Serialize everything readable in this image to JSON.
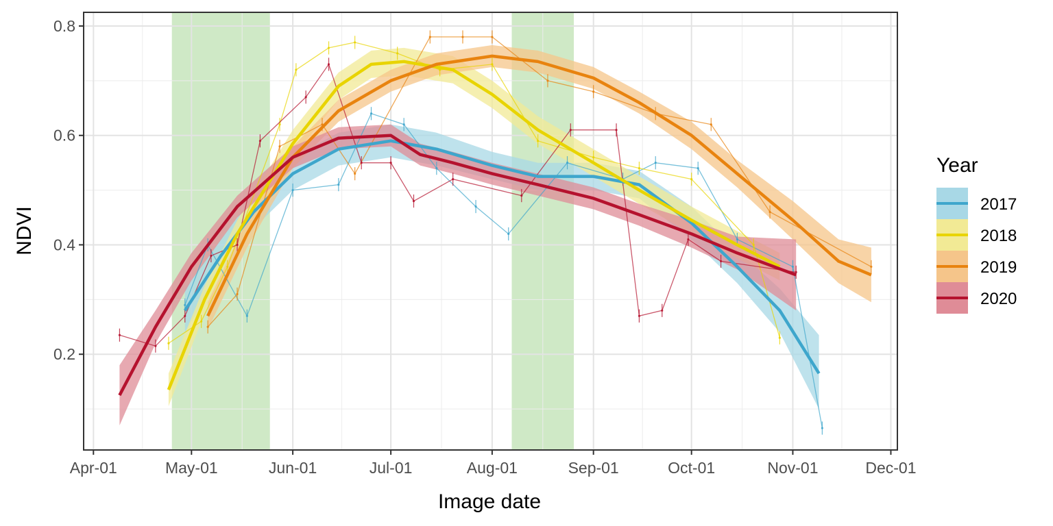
{
  "chart_data": {
    "type": "line",
    "xlabel": "Image date",
    "ylabel": "NDVI",
    "x_tick_labels": [
      "Apr-01",
      "May-01",
      "Jun-01",
      "Jul-01",
      "Aug-01",
      "Sep-01",
      "Oct-01",
      "Nov-01",
      "Dec-01"
    ],
    "x_tick_dates": [
      "2000-04-01",
      "2000-05-01",
      "2000-06-01",
      "2000-07-01",
      "2000-08-01",
      "2000-09-01",
      "2000-10-01",
      "2000-11-01",
      "2000-12-01"
    ],
    "xlim": [
      "2000-03-29",
      "2000-12-03"
    ],
    "y_ticks": [
      0.2,
      0.4,
      0.6,
      0.8
    ],
    "y_tick_labels": [
      "0.2",
      "0.4",
      "0.6",
      "0.8"
    ],
    "ylim": [
      0.025,
      0.825
    ],
    "grid": true,
    "shaded_periods": [
      {
        "start": "2000-04-25",
        "end": "2000-05-25",
        "color": "#cfe9c6"
      },
      {
        "start": "2000-08-07",
        "end": "2000-08-26",
        "color": "#cfe9c6"
      }
    ],
    "legend": {
      "title": "Year",
      "position": "right",
      "entries": [
        "2017",
        "2018",
        "2019",
        "2020"
      ]
    },
    "series": [
      {
        "name": "2017",
        "color": "#3ea6cc",
        "band_color": "#a8d8e6",
        "smooth": [
          {
            "x": "2000-04-29",
            "y": 0.28,
            "lo": 0.24,
            "hi": 0.32
          },
          {
            "x": "2000-05-10",
            "y": 0.38,
            "lo": 0.35,
            "hi": 0.41
          },
          {
            "x": "2000-05-20",
            "y": 0.46,
            "lo": 0.43,
            "hi": 0.49
          },
          {
            "x": "2000-06-01",
            "y": 0.53,
            "lo": 0.5,
            "hi": 0.56
          },
          {
            "x": "2000-06-15",
            "y": 0.575,
            "lo": 0.545,
            "hi": 0.605
          },
          {
            "x": "2000-07-01",
            "y": 0.59,
            "lo": 0.56,
            "hi": 0.62
          },
          {
            "x": "2000-07-15",
            "y": 0.575,
            "lo": 0.545,
            "hi": 0.605
          },
          {
            "x": "2000-08-01",
            "y": 0.545,
            "lo": 0.52,
            "hi": 0.57
          },
          {
            "x": "2000-08-15",
            "y": 0.525,
            "lo": 0.5,
            "hi": 0.55
          },
          {
            "x": "2000-09-01",
            "y": 0.525,
            "lo": 0.5,
            "hi": 0.55
          },
          {
            "x": "2000-09-15",
            "y": 0.51,
            "lo": 0.485,
            "hi": 0.535
          },
          {
            "x": "2000-10-01",
            "y": 0.44,
            "lo": 0.41,
            "hi": 0.47
          },
          {
            "x": "2000-10-15",
            "y": 0.36,
            "lo": 0.33,
            "hi": 0.39
          },
          {
            "x": "2000-10-28",
            "y": 0.28,
            "lo": 0.24,
            "hi": 0.32
          },
          {
            "x": "2000-11-09",
            "y": 0.165,
            "lo": 0.1,
            "hi": 0.235
          }
        ],
        "field_points": [
          {
            "x": "2000-04-29",
            "y": 0.29
          },
          {
            "x": "2000-05-06",
            "y": 0.4
          },
          {
            "x": "2000-05-18",
            "y": 0.27
          },
          {
            "x": "2000-06-01",
            "y": 0.5
          },
          {
            "x": "2000-06-15",
            "y": 0.51
          },
          {
            "x": "2000-06-25",
            "y": 0.64
          },
          {
            "x": "2000-07-05",
            "y": 0.62
          },
          {
            "x": "2000-07-15",
            "y": 0.54
          },
          {
            "x": "2000-07-27",
            "y": 0.47
          },
          {
            "x": "2000-08-06",
            "y": 0.42
          },
          {
            "x": "2000-08-24",
            "y": 0.55
          },
          {
            "x": "2000-09-10",
            "y": 0.52
          },
          {
            "x": "2000-09-20",
            "y": 0.55
          },
          {
            "x": "2000-10-03",
            "y": 0.54
          },
          {
            "x": "2000-10-15",
            "y": 0.41
          },
          {
            "x": "2000-11-01",
            "y": 0.36
          },
          {
            "x": "2000-11-10",
            "y": 0.065
          }
        ]
      },
      {
        "name": "2018",
        "color": "#e8d400",
        "band_color": "#f2ea95",
        "smooth": [
          {
            "x": "2000-04-24",
            "y": 0.135,
            "lo": 0.105,
            "hi": 0.165
          },
          {
            "x": "2000-05-05",
            "y": 0.3,
            "lo": 0.275,
            "hi": 0.325
          },
          {
            "x": "2000-05-15",
            "y": 0.42,
            "lo": 0.395,
            "hi": 0.445
          },
          {
            "x": "2000-06-01",
            "y": 0.585,
            "lo": 0.56,
            "hi": 0.61
          },
          {
            "x": "2000-06-15",
            "y": 0.69,
            "lo": 0.665,
            "hi": 0.715
          },
          {
            "x": "2000-06-25",
            "y": 0.73,
            "lo": 0.705,
            "hi": 0.755
          },
          {
            "x": "2000-07-05",
            "y": 0.735,
            "lo": 0.71,
            "hi": 0.76
          },
          {
            "x": "2000-07-20",
            "y": 0.72,
            "lo": 0.695,
            "hi": 0.745
          },
          {
            "x": "2000-08-01",
            "y": 0.675,
            "lo": 0.65,
            "hi": 0.7
          },
          {
            "x": "2000-08-15",
            "y": 0.61,
            "lo": 0.585,
            "hi": 0.635
          },
          {
            "x": "2000-09-01",
            "y": 0.55,
            "lo": 0.525,
            "hi": 0.575
          },
          {
            "x": "2000-09-15",
            "y": 0.5,
            "lo": 0.475,
            "hi": 0.525
          },
          {
            "x": "2000-10-01",
            "y": 0.445,
            "lo": 0.42,
            "hi": 0.47
          },
          {
            "x": "2000-10-15",
            "y": 0.4,
            "lo": 0.375,
            "hi": 0.425
          },
          {
            "x": "2000-10-28",
            "y": 0.36,
            "lo": 0.335,
            "hi": 0.385
          }
        ],
        "field_points": [
          {
            "x": "2000-04-24",
            "y": 0.22
          },
          {
            "x": "2000-05-04",
            "y": 0.26
          },
          {
            "x": "2000-05-12",
            "y": 0.36
          },
          {
            "x": "2000-05-28",
            "y": 0.62
          },
          {
            "x": "2000-06-02",
            "y": 0.72
          },
          {
            "x": "2000-06-12",
            "y": 0.76
          },
          {
            "x": "2000-06-20",
            "y": 0.77
          },
          {
            "x": "2000-07-03",
            "y": 0.75
          },
          {
            "x": "2000-07-16",
            "y": 0.72
          },
          {
            "x": "2000-08-01",
            "y": 0.73
          },
          {
            "x": "2000-08-15",
            "y": 0.59
          },
          {
            "x": "2000-09-01",
            "y": 0.56
          },
          {
            "x": "2000-09-15",
            "y": 0.54
          },
          {
            "x": "2000-10-01",
            "y": 0.52
          },
          {
            "x": "2000-10-20",
            "y": 0.4
          },
          {
            "x": "2000-10-28",
            "y": 0.23
          }
        ]
      },
      {
        "name": "2019",
        "color": "#e8830f",
        "band_color": "#f5c58a",
        "smooth": [
          {
            "x": "2000-05-06",
            "y": 0.27,
            "lo": 0.245,
            "hi": 0.295
          },
          {
            "x": "2000-05-18",
            "y": 0.42,
            "lo": 0.395,
            "hi": 0.445
          },
          {
            "x": "2000-06-01",
            "y": 0.56,
            "lo": 0.54,
            "hi": 0.58
          },
          {
            "x": "2000-06-15",
            "y": 0.645,
            "lo": 0.625,
            "hi": 0.665
          },
          {
            "x": "2000-07-01",
            "y": 0.7,
            "lo": 0.68,
            "hi": 0.72
          },
          {
            "x": "2000-07-15",
            "y": 0.73,
            "lo": 0.71,
            "hi": 0.75
          },
          {
            "x": "2000-08-01",
            "y": 0.745,
            "lo": 0.725,
            "hi": 0.765
          },
          {
            "x": "2000-08-15",
            "y": 0.735,
            "lo": 0.715,
            "hi": 0.755
          },
          {
            "x": "2000-09-01",
            "y": 0.705,
            "lo": 0.685,
            "hi": 0.725
          },
          {
            "x": "2000-09-15",
            "y": 0.66,
            "lo": 0.64,
            "hi": 0.68
          },
          {
            "x": "2000-10-01",
            "y": 0.6,
            "lo": 0.575,
            "hi": 0.625
          },
          {
            "x": "2000-10-15",
            "y": 0.53,
            "lo": 0.505,
            "hi": 0.555
          },
          {
            "x": "2000-11-01",
            "y": 0.445,
            "lo": 0.41,
            "hi": 0.48
          },
          {
            "x": "2000-11-15",
            "y": 0.37,
            "lo": 0.33,
            "hi": 0.41
          },
          {
            "x": "2000-11-25",
            "y": 0.345,
            "lo": 0.295,
            "hi": 0.395
          }
        ],
        "field_points": [
          {
            "x": "2000-05-06",
            "y": 0.25
          },
          {
            "x": "2000-05-15",
            "y": 0.31
          },
          {
            "x": "2000-05-28",
            "y": 0.58
          },
          {
            "x": "2000-06-10",
            "y": 0.62
          },
          {
            "x": "2000-06-20",
            "y": 0.53
          },
          {
            "x": "2000-07-13",
            "y": 0.78
          },
          {
            "x": "2000-07-23",
            "y": 0.78
          },
          {
            "x": "2000-08-01",
            "y": 0.78
          },
          {
            "x": "2000-08-18",
            "y": 0.7
          },
          {
            "x": "2000-09-01",
            "y": 0.68
          },
          {
            "x": "2000-09-20",
            "y": 0.64
          },
          {
            "x": "2000-10-07",
            "y": 0.62
          },
          {
            "x": "2000-10-25",
            "y": 0.46
          },
          {
            "x": "2000-11-25",
            "y": 0.36
          }
        ]
      },
      {
        "name": "2020",
        "color": "#b5122e",
        "band_color": "#df8c97",
        "smooth": [
          {
            "x": "2000-04-09",
            "y": 0.125,
            "lo": 0.07,
            "hi": 0.18
          },
          {
            "x": "2000-04-20",
            "y": 0.25,
            "lo": 0.22,
            "hi": 0.28
          },
          {
            "x": "2000-05-01",
            "y": 0.36,
            "lo": 0.335,
            "hi": 0.385
          },
          {
            "x": "2000-05-15",
            "y": 0.47,
            "lo": 0.45,
            "hi": 0.49
          },
          {
            "x": "2000-06-01",
            "y": 0.56,
            "lo": 0.54,
            "hi": 0.58
          },
          {
            "x": "2000-06-15",
            "y": 0.595,
            "lo": 0.575,
            "hi": 0.615
          },
          {
            "x": "2000-07-01",
            "y": 0.6,
            "lo": 0.58,
            "hi": 0.62
          },
          {
            "x": "2000-07-10",
            "y": 0.565,
            "lo": 0.545,
            "hi": 0.585
          },
          {
            "x": "2000-07-20",
            "y": 0.55,
            "lo": 0.53,
            "hi": 0.57
          },
          {
            "x": "2000-08-01",
            "y": 0.53,
            "lo": 0.51,
            "hi": 0.55
          },
          {
            "x": "2000-08-15",
            "y": 0.51,
            "lo": 0.49,
            "hi": 0.53
          },
          {
            "x": "2000-09-01",
            "y": 0.485,
            "lo": 0.465,
            "hi": 0.505
          },
          {
            "x": "2000-09-15",
            "y": 0.455,
            "lo": 0.435,
            "hi": 0.475
          },
          {
            "x": "2000-10-01",
            "y": 0.42,
            "lo": 0.395,
            "hi": 0.445
          },
          {
            "x": "2000-10-15",
            "y": 0.385,
            "lo": 0.355,
            "hi": 0.415
          },
          {
            "x": "2000-11-02",
            "y": 0.345,
            "lo": 0.28,
            "hi": 0.41
          }
        ],
        "field_points": [
          {
            "x": "2000-04-09",
            "y": 0.235
          },
          {
            "x": "2000-04-20",
            "y": 0.215
          },
          {
            "x": "2000-04-29",
            "y": 0.27
          },
          {
            "x": "2000-05-07",
            "y": 0.38
          },
          {
            "x": "2000-05-15",
            "y": 0.4
          },
          {
            "x": "2000-05-22",
            "y": 0.59
          },
          {
            "x": "2000-06-05",
            "y": 0.67
          },
          {
            "x": "2000-06-12",
            "y": 0.73
          },
          {
            "x": "2000-06-22",
            "y": 0.55
          },
          {
            "x": "2000-07-01",
            "y": 0.55
          },
          {
            "x": "2000-07-08",
            "y": 0.48
          },
          {
            "x": "2000-07-20",
            "y": 0.52
          },
          {
            "x": "2000-08-10",
            "y": 0.49
          },
          {
            "x": "2000-08-25",
            "y": 0.61
          },
          {
            "x": "2000-09-08",
            "y": 0.61
          },
          {
            "x": "2000-09-15",
            "y": 0.27
          },
          {
            "x": "2000-09-22",
            "y": 0.28
          },
          {
            "x": "2000-09-30",
            "y": 0.41
          },
          {
            "x": "2000-10-10",
            "y": 0.37
          },
          {
            "x": "2000-11-02",
            "y": 0.35
          }
        ]
      }
    ]
  }
}
